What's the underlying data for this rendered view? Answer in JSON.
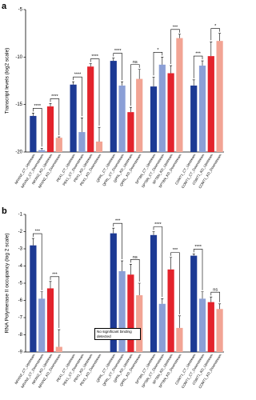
{
  "chart_data": [
    {
      "type": "bar",
      "panel": "a",
      "ylabel": "Transcript levels (log2 scale)",
      "categories": [
        "NRXN2_CT_Upstream",
        "NRXN2_CT_Downstream",
        "NRXN2_KD_Upstream",
        "NRXN2_KD_Downstream",
        "PBX1_CT_Upstream",
        "PBX1_CT_Downstream",
        "PBX1_KD_Upstream",
        "PBX1_KD_Downstream",
        "QPRL_CT_Upstream",
        "QPRL_CT_Downstream",
        "QPRL_KD_Upstream",
        "QPRL_KD_Downstream",
        "SPTBN_CT_Upstream",
        "SPTBN_CT_Downstream",
        "SPTBN_KD_Upstream",
        "SPTBN_KD_Downstream",
        "COMT1_CT_Upstream",
        "COMT1_CT_Downstream",
        "COMT1_KD_Upstream",
        "COMT1_KD_Downstream"
      ],
      "values": [
        -16.2,
        -19.8,
        -15.2,
        -18.5,
        -12.9,
        -17.9,
        -11.0,
        -18.9,
        -10.4,
        -13.0,
        -15.8,
        -12.3,
        -13.1,
        -10.8,
        -11.7,
        -8.0,
        -13.0,
        -10.9,
        -9.9,
        -8.3
      ],
      "errors": [
        0.3,
        0.2,
        0.3,
        0.1,
        0.3,
        1.5,
        0.3,
        1.5,
        0.3,
        0.4,
        0.5,
        1.0,
        1.0,
        0.8,
        0.8,
        0.4,
        0.6,
        0.5,
        1.5,
        0.8
      ],
      "colors": [
        "#1d3a94",
        "#8b9fd6",
        "#e3232c",
        "#f2a494"
      ],
      "significance": [
        "****",
        "****",
        "****",
        "****",
        "****",
        "ns",
        "*",
        "***",
        "***",
        "*"
      ],
      "ylim": [
        -20,
        -5
      ],
      "yticks": [
        -20,
        -15,
        -10,
        -5
      ]
    },
    {
      "type": "bar",
      "panel": "b",
      "ylabel": "RNA Polymerase II occupancy (log 2 scale)",
      "categories": [
        "NRXN2_CT_Upstream",
        "NRXN2_CT_Downstream",
        "NRXN2_KD_Upstream",
        "NRXN2_KD_Downstream",
        "PBX1_CT_Upstream",
        "PBX1_CT_Downstream",
        "PBX1_KD_Upstream",
        "PBX1_KD_Downstream",
        "QPRL_CT_Upstream",
        "QPRL_CT_Downstream",
        "QPRL_KD_Upstream",
        "QPRL_KD_Downstream",
        "SPTBN_CT_Upstream",
        "SPTBN_CT_Downstream",
        "SPTBN_KD_Upstream",
        "SPTBN_KD_Downstream",
        "COMT1_CT_Upstream",
        "COMT1_CT_Downstream",
        "COMT1_KD_Upstream",
        "COMT1_KD_Downstream"
      ],
      "values": [
        -2.8,
        -5.9,
        -5.3,
        -8.7,
        null,
        null,
        null,
        null,
        -2.1,
        -4.3,
        -4.5,
        -5.7,
        -2.2,
        -6.2,
        -4.2,
        -7.6,
        -3.4,
        -5.9,
        -6.1,
        -6.5
      ],
      "errors": [
        0.4,
        0.4,
        0.4,
        1.0,
        null,
        null,
        null,
        null,
        0.3,
        0.6,
        0.6,
        0.7,
        0.2,
        0.3,
        0.7,
        0.7,
        0.1,
        0.4,
        0.3,
        0.3
      ],
      "colors": [
        "#1d3a94",
        "#8b9fd6",
        "#e3232c",
        "#f2a494"
      ],
      "significance": [
        "***",
        "***",
        null,
        null,
        "***",
        "ns",
        "****",
        "***",
        "****",
        "ns"
      ],
      "note": "No significant binding detected",
      "ylim": [
        -9,
        -1
      ],
      "yticks": [
        -9,
        -8,
        -7,
        -6,
        -5,
        -4,
        -3,
        -2,
        -1
      ]
    }
  ]
}
